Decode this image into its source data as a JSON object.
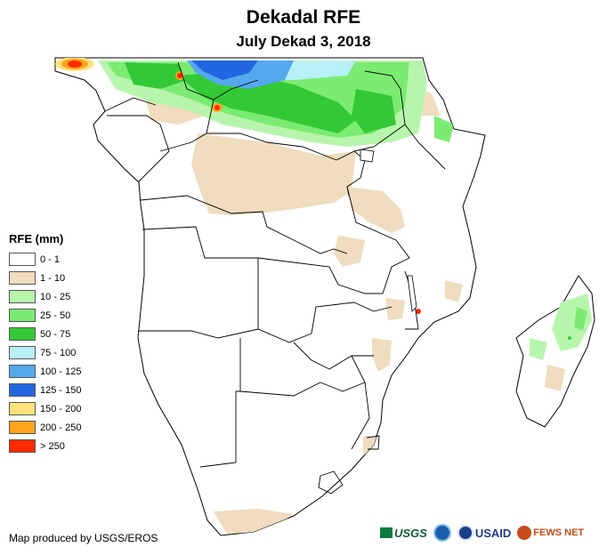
{
  "header": {
    "title": "Dekadal RFE",
    "subtitle": "July Dekad 3, 2018"
  },
  "legend": {
    "title": "RFE (mm)",
    "items": [
      {
        "label": "0 - 1",
        "color": "#ffffff"
      },
      {
        "label": "1 - 10",
        "color": "#f0dcbe"
      },
      {
        "label": "10 - 25",
        "color": "#b8f5ac"
      },
      {
        "label": "25 - 50",
        "color": "#7beb72"
      },
      {
        "label": "50 - 75",
        "color": "#33c936"
      },
      {
        "label": "75 - 100",
        "color": "#b8f0f7"
      },
      {
        "label": "100 - 125",
        "color": "#55a8ee"
      },
      {
        "label": "125 - 150",
        "color": "#2266e0"
      },
      {
        "label": "150 - 200",
        "color": "#ffe37a"
      },
      {
        "label": "200 - 250",
        "color": "#ffa51d"
      },
      {
        "label": "> 250",
        "color": "#ff2a00"
      }
    ]
  },
  "footer": {
    "credit": "Map produced by USGS/EROS",
    "logos": {
      "usgs": "USGS",
      "usaid": "USAID",
      "fews": "FEWS NET"
    }
  }
}
